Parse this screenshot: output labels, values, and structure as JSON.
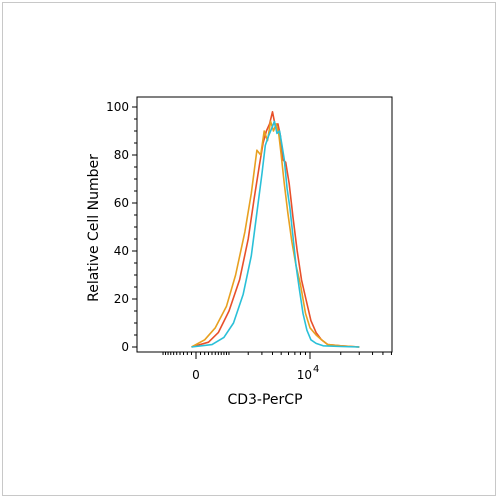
{
  "chart_data": {
    "type": "line",
    "xlabel": "CD3-PerCP",
    "ylabel": "Relative Cell Number",
    "xscale": "biexponential",
    "x_ticks": [
      {
        "label": "0",
        "exp": "",
        "x": 0
      },
      {
        "label": "10",
        "exp": "4",
        "x": 10000
      }
    ],
    "y_ticks": [
      0,
      20,
      40,
      60,
      80,
      100
    ],
    "ylim": [
      0,
      100
    ],
    "grid": false,
    "legend": "none",
    "series": [
      {
        "color": "#e8502a",
        "x": [
          -100,
          300,
          600,
          1000,
          1500,
          2000,
          2400,
          2800,
          3100,
          3400,
          3700,
          4000,
          4300,
          4600,
          4900,
          5200,
          5600,
          6100,
          6700,
          7400,
          8200,
          9100,
          10200,
          11500,
          13000,
          15000,
          20000,
          30000
        ],
        "y": [
          0,
          2,
          6,
          15,
          28,
          45,
          62,
          76,
          85,
          90,
          93,
          98,
          92,
          93,
          88,
          78,
          77,
          68,
          54,
          40,
          28,
          20,
          11,
          6,
          3,
          1,
          0.5,
          0
        ]
      },
      {
        "color": "#e8a020",
        "x": [
          -100,
          200,
          500,
          900,
          1300,
          1800,
          2200,
          2600,
          2900,
          3200,
          3500,
          3800,
          4100,
          4400,
          4700,
          5000,
          5400,
          5900,
          6500,
          7200,
          8000,
          9000,
          10000,
          11500,
          13000,
          15000,
          20000,
          30000
        ],
        "y": [
          0,
          3,
          8,
          17,
          30,
          48,
          64,
          82,
          80,
          90,
          86,
          94,
          90,
          93,
          89,
          80,
          68,
          56,
          44,
          34,
          26,
          14,
          8,
          5,
          3,
          1,
          0.5,
          0
        ]
      },
      {
        "color": "#2ac0d8",
        "x": [
          -100,
          400,
          800,
          1200,
          1700,
          2200,
          2600,
          3000,
          3300,
          3600,
          3900,
          4200,
          4500,
          4800,
          5100,
          5400,
          5800,
          6200,
          6700,
          7200,
          7800,
          8500,
          9300,
          10200,
          11500,
          13500,
          20000,
          30000
        ],
        "y": [
          0,
          1,
          4,
          10,
          22,
          38,
          56,
          72,
          84,
          88,
          91,
          94,
          89,
          90,
          84,
          78,
          66,
          58,
          46,
          34,
          24,
          14,
          7,
          3,
          1.5,
          0.5,
          0.2,
          0
        ]
      }
    ]
  }
}
